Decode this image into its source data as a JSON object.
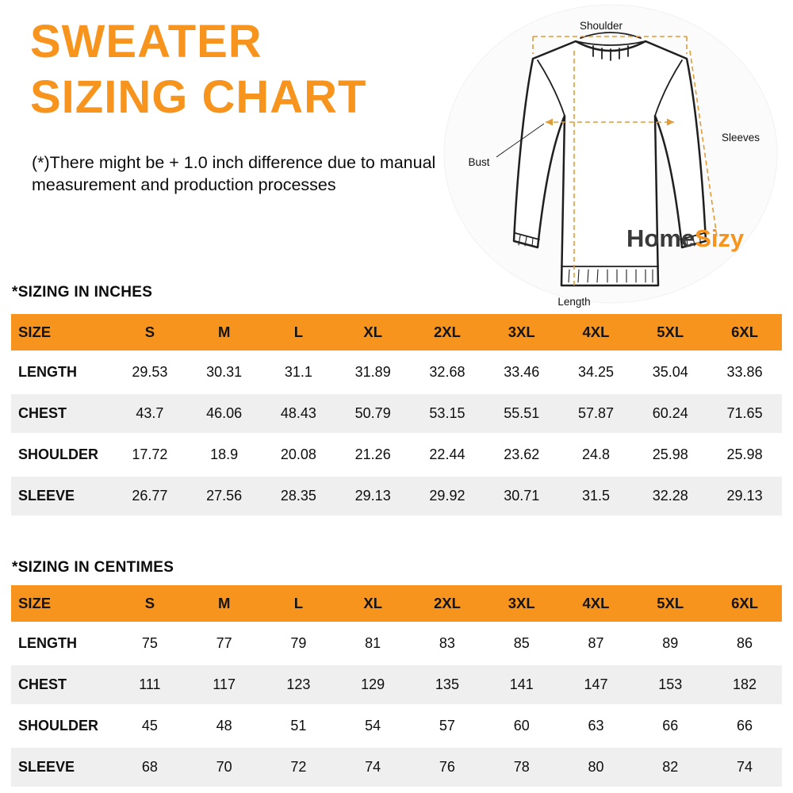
{
  "page": {
    "title_line1": "SWEATER",
    "title_line2": "SIZING CHART",
    "disclaimer": "(*)There might be + 1.0 inch difference due to manual measurement and production processes",
    "accent_color": "#F7941E"
  },
  "diagram": {
    "shoulder_label": "Shoulder",
    "sleeves_label": "Sleeves",
    "bust_label": "Bust",
    "length_label": "Length",
    "logo_home": "Home",
    "logo_sizy": "Sizy"
  },
  "chart_data": [
    {
      "type": "table",
      "title": "*SIZING IN INCHES",
      "columns": [
        "SIZE",
        "S",
        "M",
        "L",
        "XL",
        "2XL",
        "3XL",
        "4XL",
        "5XL",
        "6XL"
      ],
      "rows": [
        [
          "LENGTH",
          "29.53",
          "30.31",
          "31.1",
          "31.89",
          "32.68",
          "33.46",
          "34.25",
          "35.04",
          "33.86"
        ],
        [
          "CHEST",
          "43.7",
          "46.06",
          "48.43",
          "50.79",
          "53.15",
          "55.51",
          "57.87",
          "60.24",
          "71.65"
        ],
        [
          "SHOULDER",
          "17.72",
          "18.9",
          "20.08",
          "21.26",
          "22.44",
          "23.62",
          "24.8",
          "25.98",
          "25.98"
        ],
        [
          "SLEEVE",
          "26.77",
          "27.56",
          "28.35",
          "29.13",
          "29.92",
          "30.71",
          "31.5",
          "32.28",
          "29.13"
        ]
      ]
    },
    {
      "type": "table",
      "title": "*SIZING IN CENTIMES",
      "columns": [
        "SIZE",
        "S",
        "M",
        "L",
        "XL",
        "2XL",
        "3XL",
        "4XL",
        "5XL",
        "6XL"
      ],
      "rows": [
        [
          "LENGTH",
          "75",
          "77",
          "79",
          "81",
          "83",
          "85",
          "87",
          "89",
          "86"
        ],
        [
          "CHEST",
          "111",
          "117",
          "123",
          "129",
          "135",
          "141",
          "147",
          "153",
          "182"
        ],
        [
          "SHOULDER",
          "45",
          "48",
          "51",
          "54",
          "57",
          "60",
          "63",
          "66",
          "66"
        ],
        [
          "SLEEVE",
          "68",
          "70",
          "72",
          "74",
          "76",
          "78",
          "80",
          "82",
          "74"
        ]
      ]
    }
  ]
}
